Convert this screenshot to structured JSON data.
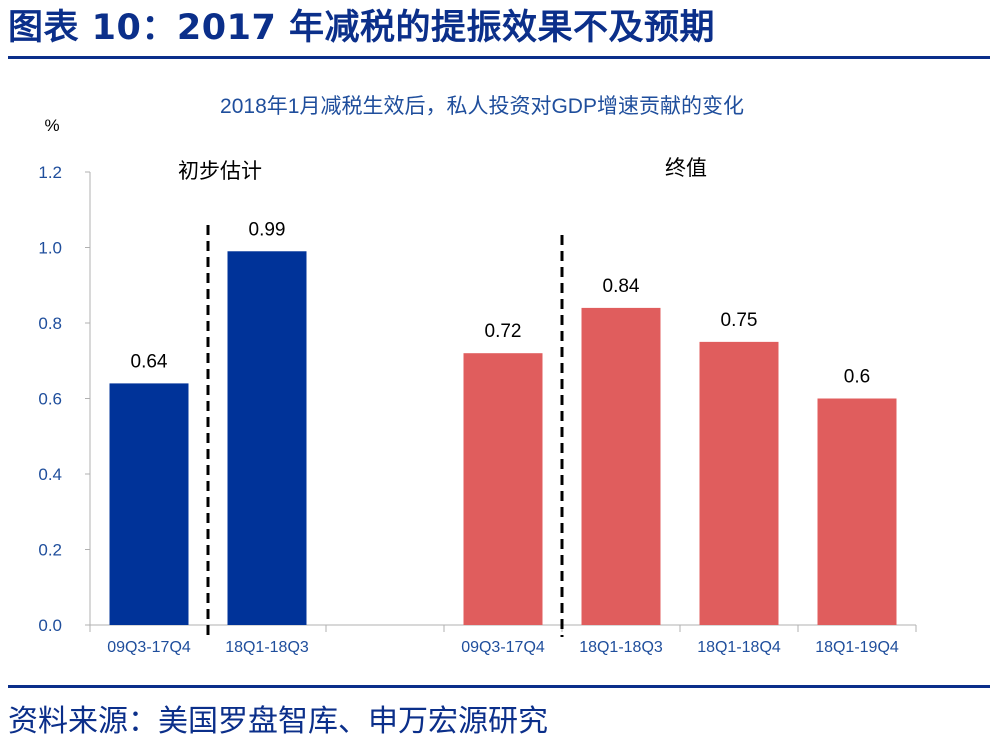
{
  "header": {
    "title": "图表 10：2017 年减税的提振效果不及预期"
  },
  "footer": {
    "source": "资料来源：美国罗盘智库、申万宏源研究"
  },
  "colors": {
    "brand": "#0b2f8a",
    "initial_bar": "#003399",
    "final_bar": "#e05d5d",
    "axis_text": "#1f4e9c"
  },
  "chart_data": {
    "type": "bar",
    "title": "2018年1月减税生效后，私人投资对GDP增速贡献的变化",
    "ylabel": "%",
    "ylim": [
      0,
      1.2
    ],
    "yticks": [
      "0.0",
      "0.2",
      "0.4",
      "0.6",
      "0.8",
      "1.0",
      "1.2"
    ],
    "grid": false,
    "groups": [
      {
        "name": "初步估计",
        "categories": [
          "09Q3-17Q4",
          "18Q1-18Q3"
        ],
        "values": [
          0.64,
          0.99
        ],
        "labels": [
          "0.64",
          "0.99"
        ]
      },
      {
        "name": "终值",
        "categories": [
          "09Q3-17Q4",
          "18Q1-18Q3",
          "18Q1-18Q4",
          "18Q1-19Q4"
        ],
        "values": [
          0.72,
          0.84,
          0.75,
          0.6
        ],
        "labels": [
          "0.72",
          "0.84",
          "0.75",
          "0.6"
        ]
      }
    ]
  }
}
